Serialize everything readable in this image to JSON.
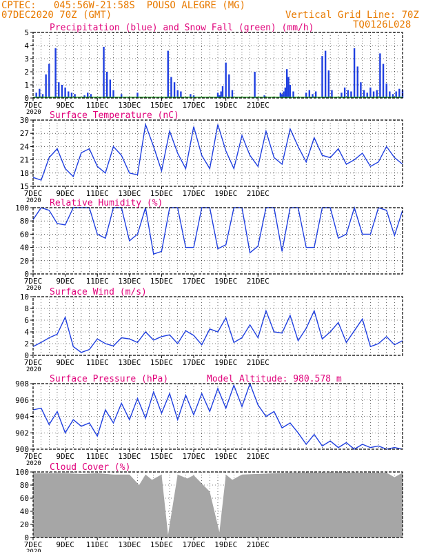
{
  "header": {
    "line1": "CPTEC:   045:56W-21:58S  POUSO ALEGRE (MG)",
    "line2": "07DEC2020 70Z (GMT)",
    "grid_note": "Vertical Grid Line: 70Z",
    "run_id": "TQ0126L028"
  },
  "colors": {
    "header": "#e87a00",
    "title": "#e0007a",
    "series": "#1f3fe0",
    "snow": "#2a9d2a",
    "cloud": "#a6a6a6"
  },
  "x_axis": {
    "ticks": [
      "7DEC",
      "9DEC",
      "11DEC",
      "13DEC",
      "15DEC",
      "17DEC",
      "19DEC",
      "21DEC"
    ],
    "extra_label": "2020"
  },
  "chart_data": [
    {
      "type": "bar",
      "title": "Precipitation (blue) and Snow Fall (green) (mm/h)",
      "ylim": [
        0,
        5
      ],
      "yticks": [
        "0",
        "1",
        "2",
        "3",
        "4",
        "5"
      ],
      "series": [
        {
          "name": "Precipitation",
          "x": [
            0.2,
            0.4,
            0.6,
            0.8,
            1.0,
            1.4,
            1.6,
            1.8,
            2.0,
            2.2,
            2.4,
            2.6,
            3.2,
            3.4,
            3.6,
            4.4,
            4.6,
            4.8,
            5.0,
            5.5,
            6.5,
            8.4,
            8.6,
            8.8,
            9.0,
            9.2,
            9.8,
            10.0,
            11.5,
            11.6,
            11.7,
            11.8,
            12.0,
            12.2,
            12.4,
            13.8,
            14.4,
            15.4,
            15.5,
            15.6,
            15.7,
            15.8,
            15.9,
            16.0,
            16.2,
            17.0,
            17.2,
            17.4,
            17.6,
            18.0,
            18.2,
            18.4,
            18.6,
            19.2,
            19.4,
            19.6,
            19.8,
            20.0,
            20.2,
            20.4,
            20.6,
            20.8,
            21.0,
            21.2,
            21.4,
            21.6,
            21.8,
            22.0,
            22.2,
            22.4,
            22.6,
            22.8,
            23.0
          ],
          "values": [
            0.4,
            0.7,
            0.3,
            1.8,
            2.6,
            3.8,
            1.2,
            1.0,
            0.8,
            0.5,
            0.4,
            0.3,
            0.2,
            0.4,
            0.3,
            3.9,
            2.0,
            1.4,
            0.6,
            0.3,
            0.4,
            3.6,
            1.6,
            1.2,
            0.6,
            0.5,
            0.3,
            0.2,
            0.4,
            0.2,
            0.5,
            0.9,
            2.7,
            1.8,
            0.6,
            2.0,
            0.2,
            0.4,
            0.3,
            0.5,
            0.8,
            2.2,
            1.6,
            1.0,
            0.5,
            0.4,
            0.6,
            0.3,
            0.5,
            3.2,
            3.6,
            2.1,
            0.6,
            0.4,
            0.8,
            0.6,
            0.5,
            3.8,
            2.4,
            1.2,
            0.6,
            0.4,
            0.8,
            0.5,
            0.6,
            3.4,
            2.6,
            1.1,
            0.5,
            0.3,
            0.5,
            0.7,
            0.6
          ]
        },
        {
          "name": "Snow Fall",
          "x": [],
          "values": []
        }
      ]
    },
    {
      "type": "line",
      "title": "Surface Temperature (nC)",
      "ylim": [
        15,
        30
      ],
      "yticks": [
        "15",
        "18",
        "21",
        "24",
        "27",
        "30"
      ],
      "series": [
        {
          "name": "Temperature",
          "x": [
            0,
            0.5,
            1,
            1.5,
            2,
            2.5,
            3,
            3.5,
            4,
            4.5,
            5,
            5.5,
            6,
            6.5,
            7,
            7.5,
            8,
            8.5,
            9,
            9.5,
            10,
            10.5,
            11,
            11.5,
            12,
            12.5,
            13,
            13.5,
            14,
            14.5,
            15,
            15.5,
            16,
            16.5,
            17,
            17.5,
            18,
            18.5,
            19,
            19.5,
            20,
            20.5,
            21,
            21.5,
            22,
            22.5,
            23
          ],
          "values": [
            17.0,
            16.4,
            21.5,
            23.5,
            19.0,
            17.2,
            22.6,
            23.5,
            19.5,
            18.0,
            24.0,
            22.0,
            18.0,
            17.6,
            29.0,
            24.0,
            18.5,
            27.5,
            22.5,
            19.0,
            28.5,
            22.0,
            19.0,
            29.0,
            23.0,
            19.0,
            26.5,
            22.0,
            19.5,
            27.5,
            21.5,
            20.0,
            28.0,
            24.0,
            20.5,
            26.0,
            22.0,
            21.5,
            23.5,
            20.0,
            21.0,
            22.5,
            19.5,
            20.5,
            24.0,
            21.5,
            20.0
          ]
        }
      ]
    },
    {
      "type": "line",
      "title": "Relative Humidity (%)",
      "ylim": [
        0,
        100
      ],
      "yticks": [
        "0",
        "20",
        "40",
        "60",
        "80",
        "100"
      ],
      "series": [
        {
          "name": "Humidity",
          "x": [
            0,
            0.5,
            1,
            1.5,
            2,
            2.5,
            3,
            3.5,
            4,
            4.5,
            5,
            5.5,
            6,
            6.5,
            7,
            7.5,
            8,
            8.5,
            9,
            9.5,
            10,
            10.5,
            11,
            11.5,
            12,
            12.5,
            13,
            13.5,
            14,
            14.5,
            15,
            15.5,
            16,
            16.5,
            17,
            17.5,
            18,
            18.5,
            19,
            19.5,
            20,
            20.5,
            21,
            21.5,
            22,
            22.5,
            23
          ],
          "values": [
            82,
            100,
            96,
            76,
            74,
            100,
            100,
            100,
            60,
            54,
            100,
            100,
            50,
            60,
            100,
            30,
            34,
            100,
            100,
            40,
            40,
            100,
            100,
            38,
            44,
            100,
            100,
            32,
            42,
            100,
            100,
            34,
            100,
            100,
            40,
            40,
            100,
            100,
            54,
            60,
            100,
            60,
            60,
            100,
            96,
            58,
            96
          ]
        }
      ]
    },
    {
      "type": "line",
      "title": "Surface Wind (m/s)",
      "ylim": [
        0,
        10
      ],
      "yticks": [
        "0",
        "2",
        "4",
        "6",
        "8",
        "10"
      ],
      "series": [
        {
          "name": "Wind speed",
          "x": [
            0,
            0.5,
            1,
            1.5,
            2,
            2.5,
            3,
            3.5,
            4,
            4.5,
            5,
            5.5,
            6,
            6.5,
            7,
            7.5,
            8,
            8.5,
            9,
            9.5,
            10,
            10.5,
            11,
            11.5,
            12,
            12.5,
            13,
            13.5,
            14,
            14.5,
            15,
            15.5,
            16,
            16.5,
            17,
            17.5,
            18,
            18.5,
            19,
            19.5,
            20,
            20.5,
            21,
            21.5,
            22,
            22.5,
            23
          ],
          "values": [
            1.5,
            2.2,
            3.0,
            3.6,
            6.5,
            1.5,
            0.5,
            1.0,
            2.8,
            2.0,
            1.6,
            3.0,
            2.8,
            2.2,
            4.0,
            2.6,
            3.2,
            3.5,
            2.0,
            4.2,
            3.4,
            1.8,
            4.5,
            4.0,
            6.4,
            2.2,
            3.0,
            5.2,
            3.0,
            7.6,
            4.0,
            3.8,
            6.8,
            2.5,
            4.6,
            7.6,
            2.8,
            4.0,
            5.6,
            2.2,
            4.2,
            6.2,
            1.5,
            2.0,
            3.2,
            1.8,
            2.5
          ]
        }
      ]
    },
    {
      "type": "line",
      "title": "Surface Pressure (hPa)",
      "annotation": "Model Altitude: 980.578  m",
      "ylim": [
        900,
        908
      ],
      "yticks": [
        "900",
        "902",
        "904",
        "906",
        "908"
      ],
      "series": [
        {
          "name": "Pressure",
          "x": [
            0,
            0.5,
            1,
            1.5,
            2,
            2.5,
            3,
            3.5,
            4,
            4.5,
            5,
            5.5,
            6,
            6.5,
            7,
            7.5,
            8,
            8.5,
            9,
            9.5,
            10,
            10.5,
            11,
            11.5,
            12,
            12.5,
            13,
            13.5,
            14,
            14.5,
            15,
            15.5,
            16,
            16.5,
            17,
            17.5,
            18,
            18.5,
            19,
            19.5,
            20,
            20.5,
            21,
            21.5,
            22,
            22.5,
            23
          ],
          "values": [
            904.8,
            905.0,
            903.0,
            904.6,
            902.0,
            903.6,
            902.8,
            903.2,
            901.6,
            904.8,
            903.2,
            905.6,
            903.6,
            906.2,
            903.8,
            907.0,
            904.4,
            906.8,
            903.6,
            906.6,
            904.2,
            906.8,
            904.6,
            907.4,
            905.0,
            907.8,
            905.2,
            908.0,
            905.4,
            904.0,
            904.6,
            902.6,
            903.2,
            902.0,
            900.6,
            901.8,
            900.4,
            901.0,
            900.2,
            900.8,
            900.0,
            900.6,
            900.2,
            900.4,
            900.0,
            900.2,
            900.0
          ]
        }
      ]
    },
    {
      "type": "area",
      "title": "Cloud Cover (%)",
      "ylim": [
        0,
        100
      ],
      "yticks": [
        "0",
        "20",
        "40",
        "60",
        "80",
        "100"
      ],
      "series": [
        {
          "name": "Cloud cover",
          "x": [
            0,
            1,
            2,
            3,
            4,
            5,
            6,
            6.6,
            7,
            7.4,
            8,
            8.4,
            9,
            9.6,
            10,
            11,
            11.6,
            12,
            12.4,
            13,
            14,
            15,
            16,
            17,
            18,
            19,
            20,
            21,
            22,
            22.5,
            23
          ],
          "values": [
            98,
            98,
            98,
            97,
            98,
            96,
            96,
            80,
            96,
            88,
            96,
            4,
            96,
            90,
            95,
            70,
            8,
            96,
            88,
            96,
            97,
            98,
            99,
            99,
            99,
            99,
            99,
            99,
            99,
            92,
            99
          ]
        }
      ]
    }
  ]
}
